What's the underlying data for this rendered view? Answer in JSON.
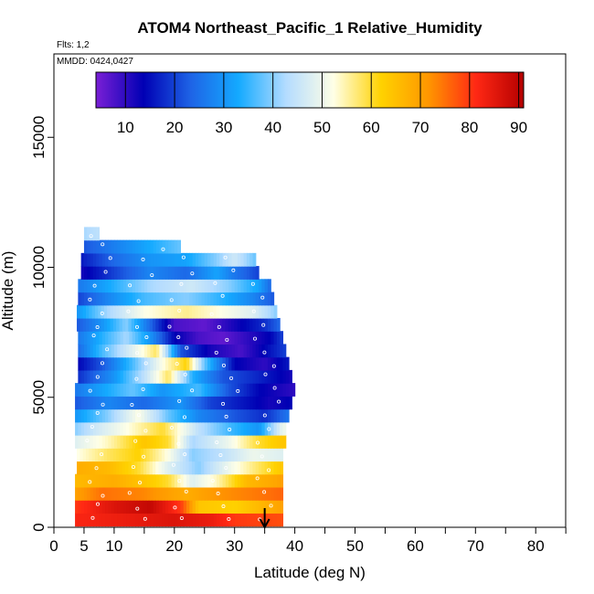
{
  "chart_data": {
    "type": "heatmap",
    "title": "ATOM4 Northeast_Pacific_1 Relative_Humidity",
    "annotations": {
      "flights": "Flts: 1,2",
      "dates": "MMDD: 0424,0427"
    },
    "xlabel": "Latitude (deg N)",
    "ylabel": "Altitude (m)",
    "xlim": [
      0,
      85
    ],
    "ylim": [
      0,
      17500
    ],
    "x_ticks": [
      0,
      5,
      10,
      20,
      30,
      40,
      50,
      60,
      70,
      80
    ],
    "y_ticks": [
      0,
      5000,
      10000,
      15000
    ],
    "colorbar": {
      "range": [
        4,
        91
      ],
      "ticks": [
        10,
        20,
        30,
        40,
        50,
        60,
        70,
        80,
        90
      ],
      "colors": [
        "#7a1fd6",
        "#0000b4",
        "#1e64e6",
        "#14aaff",
        "#b4dcff",
        "#ffffe6",
        "#ffd200",
        "#ff9600",
        "#ff2814",
        "#b40000"
      ]
    },
    "marker": {
      "lat": 35,
      "direction": "down"
    },
    "rows": [
      {
        "alt": 300,
        "x0": 3.5,
        "x1": 38.0,
        "stops": [
          [
            3.5,
            82
          ],
          [
            12,
            84
          ],
          [
            20,
            86
          ],
          [
            26,
            84
          ],
          [
            30,
            80
          ],
          [
            38,
            78
          ]
        ]
      },
      {
        "alt": 800,
        "x0": 3.5,
        "x1": 38.0,
        "stops": [
          [
            3.5,
            80
          ],
          [
            10,
            86
          ],
          [
            16,
            89
          ],
          [
            21,
            80
          ],
          [
            24,
            64
          ],
          [
            30,
            62
          ],
          [
            38,
            70
          ]
        ]
      },
      {
        "alt": 1300,
        "x0": 3.5,
        "x1": 38.0,
        "stops": [
          [
            3.5,
            70
          ],
          [
            8,
            75
          ],
          [
            15,
            73
          ],
          [
            22,
            68
          ],
          [
            28,
            72
          ],
          [
            33,
            74
          ],
          [
            38,
            76
          ]
        ]
      },
      {
        "alt": 1800,
        "x0": 3.5,
        "x1": 38.0,
        "stops": [
          [
            3.5,
            66
          ],
          [
            10,
            68
          ],
          [
            15,
            64
          ],
          [
            19,
            60
          ],
          [
            23,
            48
          ],
          [
            27,
            54
          ],
          [
            32,
            66
          ],
          [
            38,
            70
          ]
        ]
      },
      {
        "alt": 2300,
        "x0": 3.8,
        "x1": 38.0,
        "stops": [
          [
            3.8,
            68
          ],
          [
            9,
            66
          ],
          [
            14,
            60
          ],
          [
            19,
            48
          ],
          [
            24,
            40
          ],
          [
            29,
            50
          ],
          [
            34,
            58
          ],
          [
            38,
            64
          ]
        ]
      },
      {
        "alt": 2800,
        "x0": 3.8,
        "x1": 38.0,
        "stops": [
          [
            3.8,
            52
          ],
          [
            9,
            58
          ],
          [
            14,
            62
          ],
          [
            19,
            52
          ],
          [
            23,
            40
          ],
          [
            28,
            44
          ],
          [
            33,
            50
          ],
          [
            38,
            48
          ]
        ]
      },
      {
        "alt": 3300,
        "x0": 3.5,
        "x1": 38.5,
        "stops": [
          [
            3.5,
            48
          ],
          [
            9,
            54
          ],
          [
            15,
            64
          ],
          [
            19,
            60
          ],
          [
            23,
            42
          ],
          [
            29,
            50
          ],
          [
            34,
            60
          ],
          [
            38,
            64
          ]
        ]
      },
      {
        "alt": 3800,
        "x0": 3.5,
        "x1": 38.5,
        "stops": [
          [
            3.5,
            40
          ],
          [
            7,
            46
          ],
          [
            12,
            52
          ],
          [
            18,
            60
          ],
          [
            24,
            44
          ],
          [
            29,
            36
          ],
          [
            34,
            30
          ],
          [
            38,
            50
          ]
        ]
      },
      {
        "alt": 4300,
        "x0": 3.5,
        "x1": 39.0,
        "stops": [
          [
            3.5,
            30
          ],
          [
            9,
            40
          ],
          [
            14,
            52
          ],
          [
            19,
            38
          ],
          [
            24,
            28
          ],
          [
            30,
            22
          ],
          [
            35,
            18
          ],
          [
            39,
            26
          ]
        ]
      },
      {
        "alt": 4800,
        "x0": 3.5,
        "x1": 39.5,
        "stops": [
          [
            3.5,
            22
          ],
          [
            9,
            28
          ],
          [
            15,
            24
          ],
          [
            21,
            30
          ],
          [
            26,
            20
          ],
          [
            31,
            16
          ],
          [
            36,
            12
          ],
          [
            39.5,
            14
          ]
        ]
      },
      {
        "alt": 5300,
        "x0": 3.5,
        "x1": 40.0,
        "stops": [
          [
            3.5,
            26
          ],
          [
            8,
            32
          ],
          [
            13,
            38
          ],
          [
            18,
            30
          ],
          [
            24,
            36
          ],
          [
            29,
            22
          ],
          [
            34,
            14
          ],
          [
            40,
            10
          ]
        ]
      },
      {
        "alt": 5800,
        "x0": 4.0,
        "x1": 39.5,
        "stops": [
          [
            4,
            18
          ],
          [
            10,
            30
          ],
          [
            15,
            44
          ],
          [
            19,
            58
          ],
          [
            23,
            34
          ],
          [
            28,
            22
          ],
          [
            33,
            18
          ],
          [
            39.5,
            12
          ]
        ]
      },
      {
        "alt": 6300,
        "x0": 4.0,
        "x1": 39.0,
        "stops": [
          [
            4,
            14
          ],
          [
            8,
            22
          ],
          [
            13,
            36
          ],
          [
            18,
            52
          ],
          [
            22,
            62
          ],
          [
            25,
            38
          ],
          [
            30,
            14
          ],
          [
            35,
            10
          ],
          [
            39,
            16
          ]
        ]
      },
      {
        "alt": 6800,
        "x0": 4.0,
        "x1": 38.5,
        "stops": [
          [
            4,
            24
          ],
          [
            8,
            36
          ],
          [
            13,
            48
          ],
          [
            17,
            58
          ],
          [
            21,
            22
          ],
          [
            26,
            12
          ],
          [
            31,
            8
          ],
          [
            35,
            14
          ],
          [
            38.5,
            20
          ]
        ]
      },
      {
        "alt": 7300,
        "x0": 4.0,
        "x1": 38.0,
        "stops": [
          [
            4,
            26
          ],
          [
            8,
            34
          ],
          [
            12,
            42
          ],
          [
            16,
            30
          ],
          [
            20,
            14
          ],
          [
            24,
            8
          ],
          [
            28,
            6
          ],
          [
            32,
            10
          ],
          [
            36,
            14
          ],
          [
            38,
            20
          ]
        ]
      },
      {
        "alt": 7800,
        "x0": 3.8,
        "x1": 37.5,
        "stops": [
          [
            3.8,
            22
          ],
          [
            8,
            30
          ],
          [
            12,
            40
          ],
          [
            16,
            24
          ],
          [
            20,
            8
          ],
          [
            25,
            6
          ],
          [
            30,
            12
          ],
          [
            35,
            18
          ],
          [
            37.5,
            24
          ]
        ]
      },
      {
        "alt": 8300,
        "x0": 3.8,
        "x1": 37.0,
        "stops": [
          [
            3.8,
            30
          ],
          [
            9,
            42
          ],
          [
            15,
            52
          ],
          [
            22,
            56
          ],
          [
            28,
            52
          ],
          [
            33,
            48
          ],
          [
            37,
            40
          ]
        ]
      },
      {
        "alt": 8800,
        "x0": 4.0,
        "x1": 36.5,
        "stops": [
          [
            4,
            20
          ],
          [
            9,
            28
          ],
          [
            15,
            36
          ],
          [
            22,
            40
          ],
          [
            28,
            34
          ],
          [
            33,
            28
          ],
          [
            36.5,
            22
          ]
        ]
      },
      {
        "alt": 9300,
        "x0": 4.0,
        "x1": 36.0,
        "stops": [
          [
            4,
            26
          ],
          [
            10,
            34
          ],
          [
            16,
            42
          ],
          [
            23,
            46
          ],
          [
            29,
            40
          ],
          [
            34,
            32
          ],
          [
            36,
            24
          ]
        ]
      },
      {
        "alt": 9800,
        "x0": 4.5,
        "x1": 34.0,
        "stops": [
          [
            4.5,
            12
          ],
          [
            10,
            20
          ],
          [
            16,
            28
          ],
          [
            22,
            24
          ],
          [
            27,
            32
          ],
          [
            30,
            26
          ],
          [
            34,
            20
          ]
        ]
      },
      {
        "alt": 10300,
        "x0": 4.5,
        "x1": 33.5,
        "stops": [
          [
            4.5,
            16
          ],
          [
            10,
            24
          ],
          [
            16,
            30
          ],
          [
            22,
            32
          ],
          [
            27,
            40
          ],
          [
            30,
            46
          ],
          [
            33.5,
            38
          ]
        ]
      },
      {
        "alt": 10800,
        "x0": 5.0,
        "x1": 21.0,
        "stops": [
          [
            5,
            22
          ],
          [
            9,
            26
          ],
          [
            13,
            30
          ],
          [
            17,
            34
          ],
          [
            21,
            38
          ]
        ]
      },
      {
        "alt": 11300,
        "x0": 5.0,
        "x1": 7.5,
        "stops": [
          [
            5,
            42
          ],
          [
            7.5,
            44
          ]
        ]
      }
    ]
  }
}
